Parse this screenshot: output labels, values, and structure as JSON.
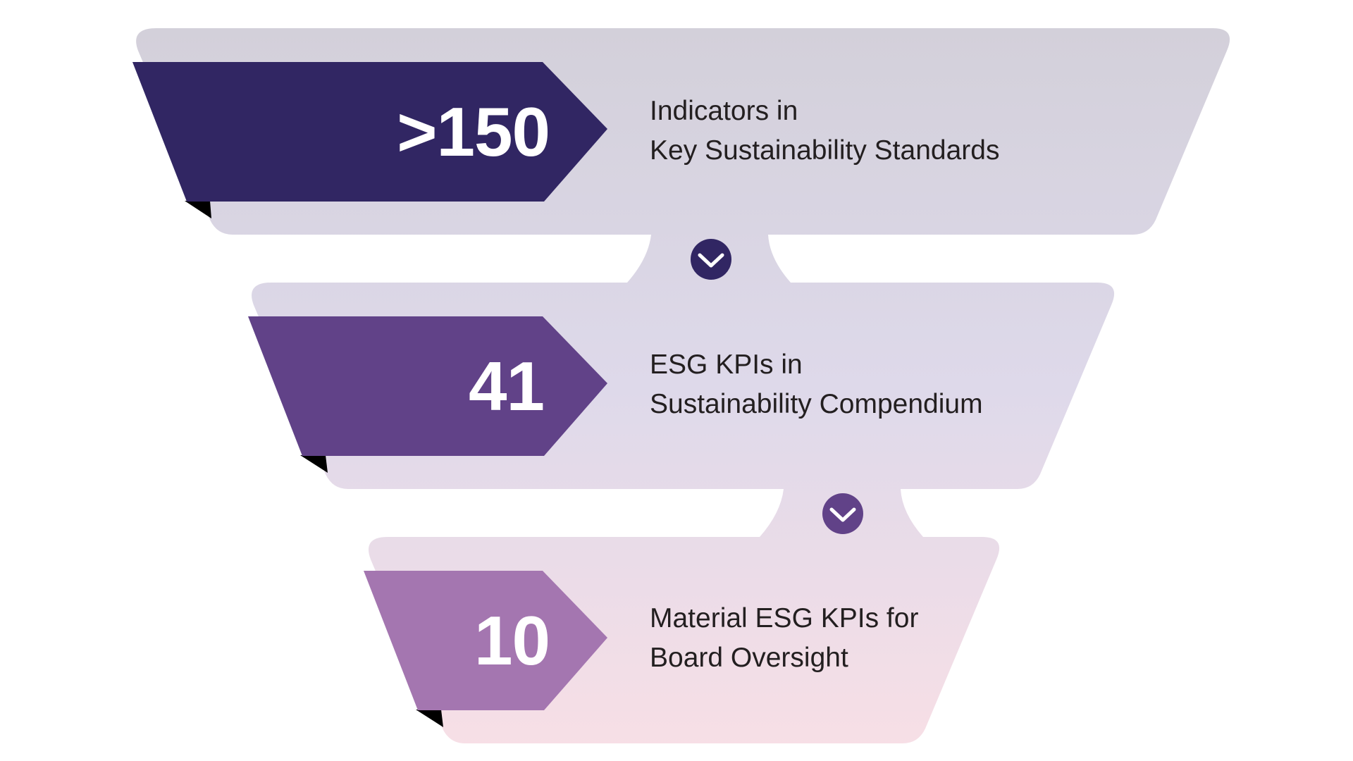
{
  "colors": {
    "tier1_tag": "#312663",
    "tier2_tag": "#614288",
    "tier3_tag": "#a476b0",
    "band_top": "#d3d0da",
    "band_mid": "#ded9ea",
    "band_bottom": "#f7dfe6",
    "connector1": "#312663",
    "connector2": "#614288",
    "tag_fold": "#000000",
    "label_text": "#231f20"
  },
  "tiers": [
    {
      "value": ">150",
      "line1": "Indicators in",
      "line2": "Key Sustainability Standards"
    },
    {
      "value": "41",
      "line1": "ESG KPIs in",
      "line2": "Sustainability Compendium"
    },
    {
      "value": "10",
      "line1": "Material ESG KPIs for",
      "line2": "Board Oversight"
    }
  ],
  "connectors": [
    {
      "icon": "chevron-down-icon"
    },
    {
      "icon": "chevron-down-icon"
    }
  ]
}
